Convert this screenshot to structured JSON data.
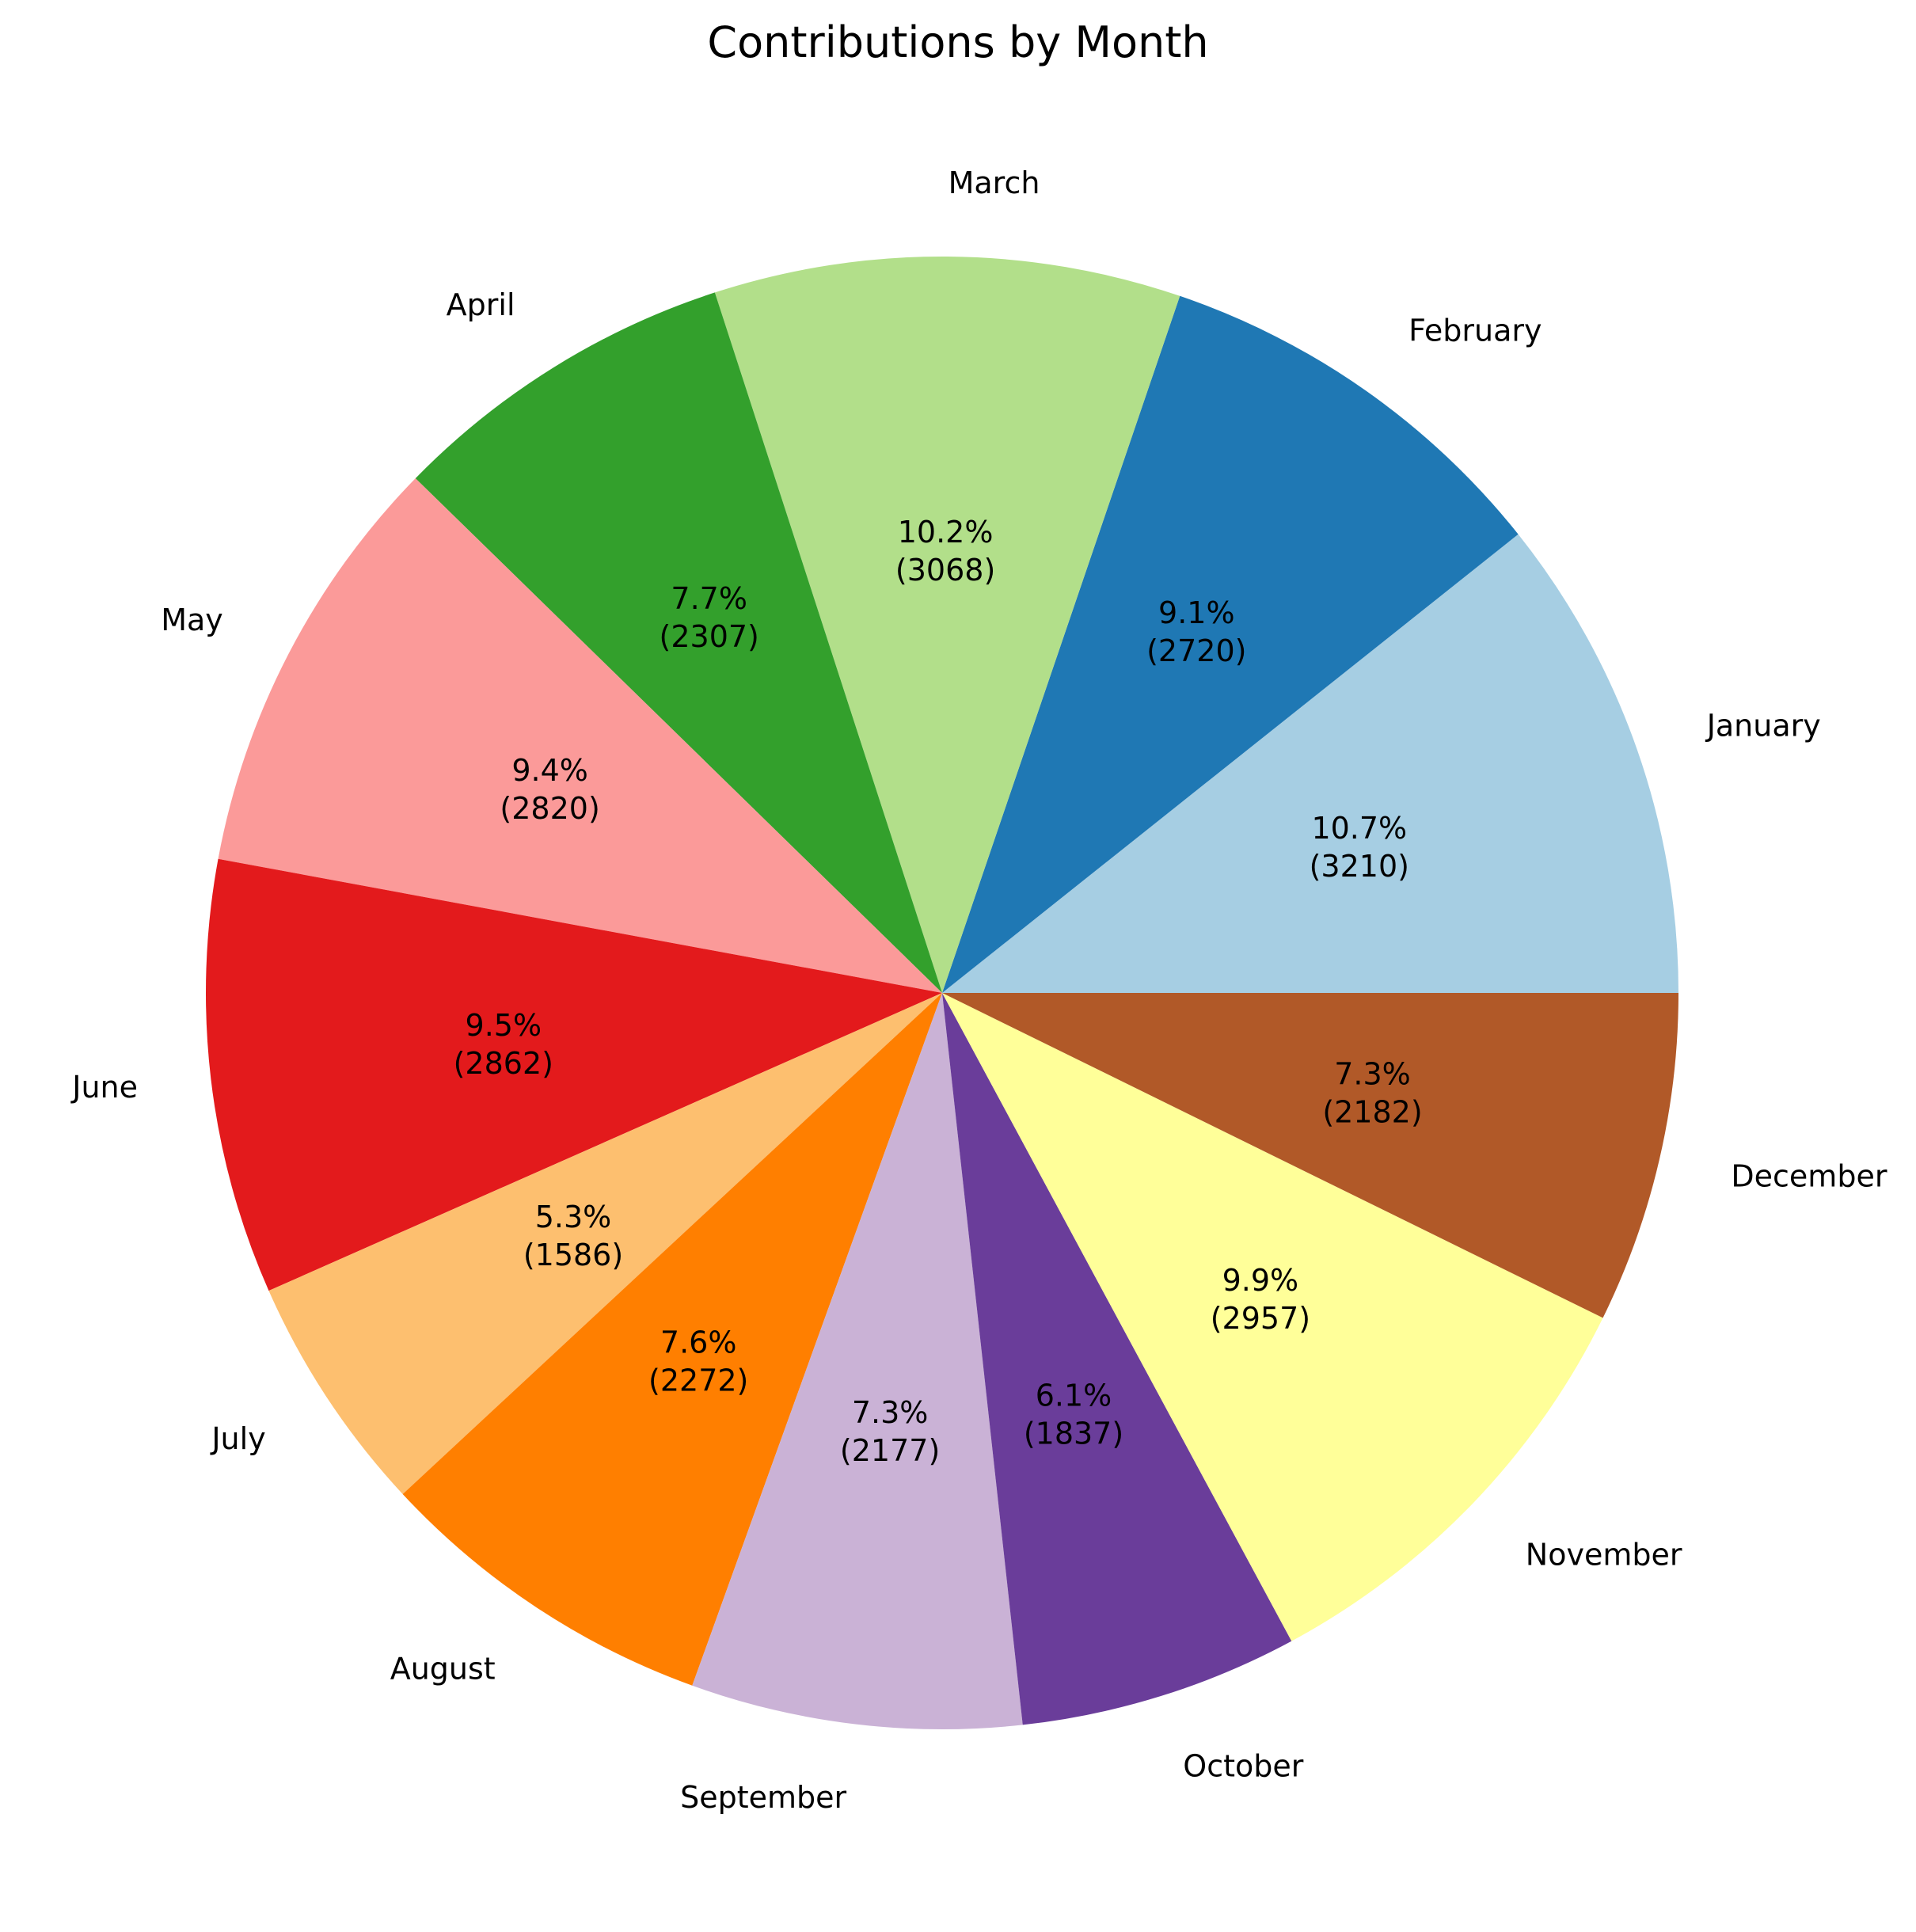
{
  "chart_data": {
    "type": "pie",
    "title": "Contributions by Month",
    "categories": [
      "January",
      "February",
      "March",
      "April",
      "May",
      "June",
      "July",
      "August",
      "September",
      "October",
      "November",
      "December"
    ],
    "values": [
      3210,
      2720,
      3068,
      2307,
      2820,
      2862,
      1586,
      2272,
      2177,
      1837,
      2957,
      2182
    ],
    "percent_labels": [
      "10.7%",
      "9.1%",
      "10.2%",
      "7.7%",
      "9.4%",
      "9.5%",
      "5.3%",
      "7.6%",
      "7.3%",
      "6.1%",
      "9.9%",
      "7.3%"
    ],
    "value_labels": [
      "(3210)",
      "(2720)",
      "(3068)",
      "(2307)",
      "(2820)",
      "(2862)",
      "(1586)",
      "(2272)",
      "(2177)",
      "(1837)",
      "(2957)",
      "(2182)"
    ],
    "colors": [
      "#a6cee3",
      "#1f78b4",
      "#b2df8a",
      "#33a02c",
      "#fb9a99",
      "#e31a1c",
      "#fdbf6f",
      "#ff7f00",
      "#cab2d6",
      "#6a3d9a",
      "#ffff99",
      "#b15928"
    ],
    "start_angle_degrees": 0,
    "direction": "counterclockwise",
    "legend": "none"
  }
}
